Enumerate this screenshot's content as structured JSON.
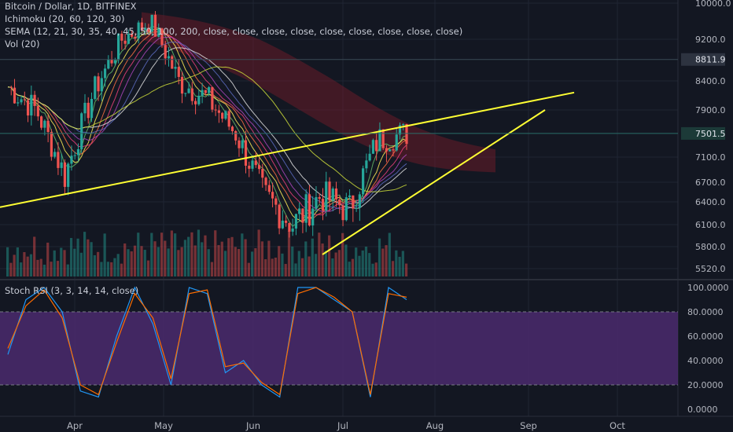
{
  "legend": {
    "symbol": "Bitcoin / Dollar, 1D, BITFINEX",
    "ichimoku": "Ichimoku (20, 60, 120, 30)",
    "sema": "SEMA (12, 21, 30, 35, 40, 45, 50, 100, 200, close, close, close, close, close, close, close, close, close)",
    "vol": "Vol (20)",
    "stoch": "Stoch RSI (3, 3, 14, 14, close)"
  },
  "colors": {
    "background": "#131722",
    "candle_up": "#26a69a",
    "candle_down": "#ef5350",
    "trendline": "#ffff33",
    "cloud": "#7a1c2b",
    "stoch_band": "#4b2a6d",
    "stoch_k": "#2196f3",
    "stoch_d": "#ff6d00"
  },
  "chart_data": [
    {
      "type": "candlestick",
      "title": "Bitcoin / Dollar, 1D, BITFINEX",
      "x_tick_labels": [
        "Apr",
        "May",
        "Jun",
        "Jul",
        "Aug",
        "Sep",
        "Oct"
      ],
      "y_tick_labels": [
        "10000.0",
        "9200.0",
        "8400.0",
        "7900.0",
        "7100.0",
        "6700.0",
        "6400.0",
        "6100.0",
        "5800.0",
        "5520.0"
      ],
      "price_labels": [
        {
          "text": "8811.9",
          "value": 8811.9
        },
        {
          "text": "7501.5",
          "value": 7501.5
        }
      ],
      "ohlc_approx": [
        {
          "month": "Mar",
          "close": 8300
        },
        {
          "month": "Mar",
          "close": 7900
        },
        {
          "month": "Apr",
          "close": 6800
        },
        {
          "month": "Apr",
          "close": 8200
        },
        {
          "month": "Apr",
          "close": 9200
        },
        {
          "month": "May",
          "close": 9600
        },
        {
          "month": "May",
          "close": 8400
        },
        {
          "month": "May",
          "close": 8100
        },
        {
          "month": "Jun",
          "close": 7500
        },
        {
          "month": "Jun",
          "close": 6500
        },
        {
          "month": "Jun",
          "close": 6100
        },
        {
          "month": "Jul",
          "close": 6500
        },
        {
          "month": "Jul",
          "close": 6300
        },
        {
          "month": "Jul",
          "close": 7400
        },
        {
          "month": "Jul",
          "close": 7500
        }
      ],
      "trendlines": [
        {
          "from": {
            "value": 6330
          },
          "to": {
            "value": 8200
          }
        },
        {
          "from": {
            "value": 5700
          },
          "to": {
            "value": 7900
          }
        }
      ]
    },
    {
      "type": "line",
      "title": "Stoch RSI (3, 3, 14, 14, close)",
      "y_tick_labels": [
        "100.0000",
        "80.0000",
        "60.0000",
        "40.0000",
        "20.0000",
        "0.0000"
      ],
      "band": [
        20,
        80
      ],
      "series": [
        {
          "key": "k",
          "values": [
            45,
            90,
            100,
            80,
            15,
            10,
            60,
            100,
            70,
            20,
            100,
            95,
            30,
            40,
            20,
            10,
            100,
            100,
            90,
            80,
            10,
            100,
            90
          ]
        },
        {
          "key": "d",
          "values": [
            50,
            85,
            98,
            75,
            20,
            12,
            55,
            95,
            75,
            25,
            95,
            98,
            35,
            38,
            22,
            12,
            95,
            100,
            92,
            80,
            12,
            95,
            92
          ]
        }
      ]
    }
  ]
}
